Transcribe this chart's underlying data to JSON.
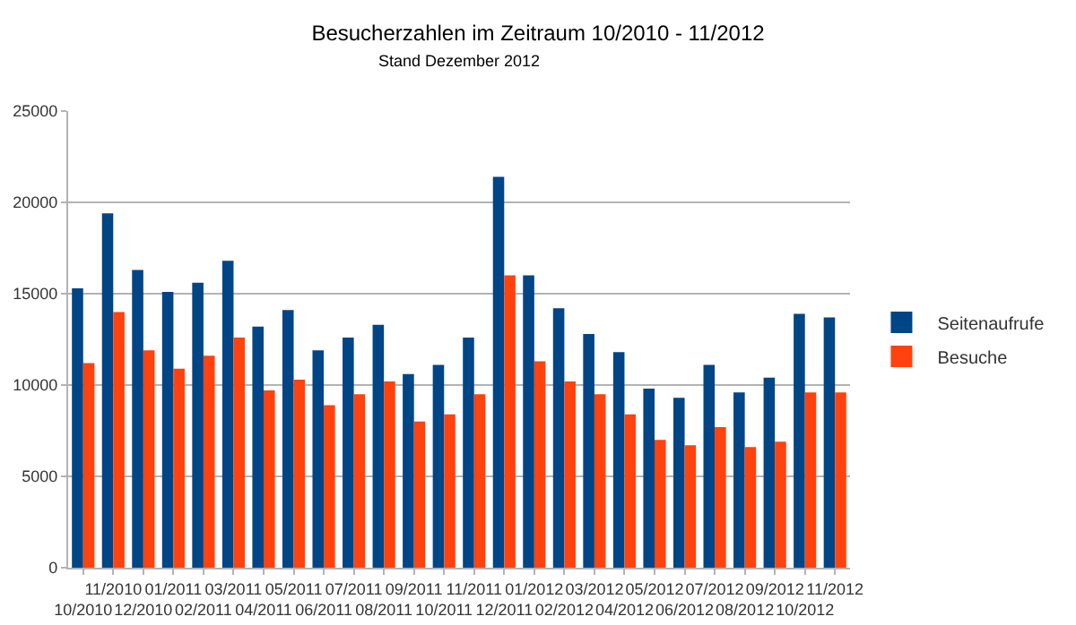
{
  "chart_data": {
    "type": "bar",
    "title": "Besucherzahlen im Zeitraum 10/2010 - 11/2012",
    "subtitle": "Stand Dezember 2012",
    "categories": [
      "10/2010",
      "11/2010",
      "12/2010",
      "01/2011",
      "02/2011",
      "03/2011",
      "04/2011",
      "05/2011",
      "06/2011",
      "07/2011",
      "08/2011",
      "09/2011",
      "10/2011",
      "11/2011",
      "12/2011",
      "01/2012",
      "02/2012",
      "03/2012",
      "04/2012",
      "05/2012",
      "06/2012",
      "07/2012",
      "08/2012",
      "09/2012",
      "10/2012",
      "11/2012"
    ],
    "series": [
      {
        "name": "Seitenaufrufe",
        "color": "#004586",
        "values": [
          15300,
          19400,
          16300,
          15100,
          15600,
          16800,
          13200,
          14100,
          11900,
          12600,
          13300,
          10600,
          11100,
          12600,
          21400,
          16000,
          14200,
          12800,
          11800,
          9800,
          9300,
          11100,
          9600,
          10400,
          13900,
          13700
        ]
      },
      {
        "name": "Besuche",
        "color": "#ff420e",
        "values": [
          11200,
          14000,
          11900,
          10900,
          11600,
          12600,
          9700,
          10300,
          8900,
          9500,
          10200,
          8000,
          8400,
          9500,
          16000,
          11300,
          10200,
          9500,
          8400,
          7000,
          6700,
          7700,
          6600,
          6900,
          9600,
          9600
        ]
      }
    ],
    "ylim": [
      0,
      25000
    ],
    "yticks": [
      0,
      5000,
      10000,
      15000,
      20000,
      25000
    ],
    "grid": "y",
    "legend": "right"
  }
}
